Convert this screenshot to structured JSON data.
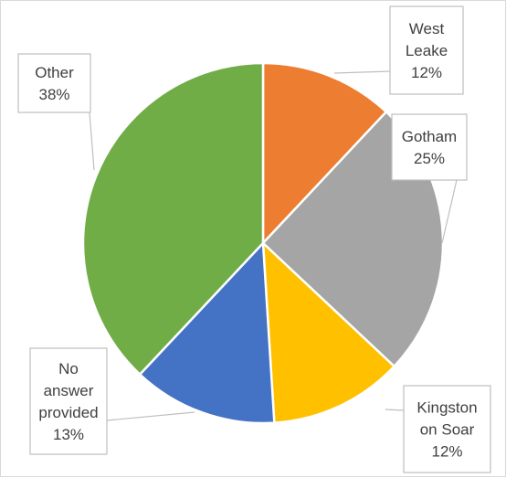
{
  "chart_data": {
    "type": "pie",
    "title": "",
    "slices": [
      {
        "label_lines": [
          "West",
          "Leake"
        ],
        "percent_label": "12%",
        "value": 12,
        "color": "#ED7D31"
      },
      {
        "label_lines": [
          "Gotham"
        ],
        "percent_label": "25%",
        "value": 25,
        "color": "#A5A5A5"
      },
      {
        "label_lines": [
          "Kingston",
          "on Soar"
        ],
        "percent_label": "12%",
        "value": 12,
        "color": "#FFC000"
      },
      {
        "label_lines": [
          "No",
          "answer",
          "provided"
        ],
        "percent_label": "13%",
        "value": 13,
        "color": "#4472C4"
      },
      {
        "label_lines": [
          "Other"
        ],
        "percent_label": "38%",
        "value": 38,
        "color": "#70AD47"
      }
    ],
    "legend": "none",
    "start_angle": "top, clockwise"
  }
}
